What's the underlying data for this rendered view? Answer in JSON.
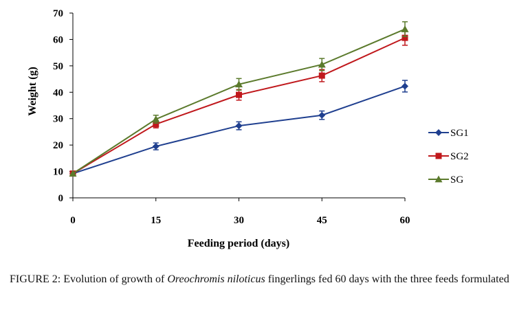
{
  "chart_data": {
    "type": "line",
    "xlabel": "Feeding period (days)",
    "ylabel": "Weight (g)",
    "x": [
      0,
      15,
      30,
      45,
      60
    ],
    "xlim": [
      0,
      60
    ],
    "ylim": [
      0,
      70
    ],
    "yticks": [
      0,
      10,
      20,
      30,
      40,
      50,
      60,
      70
    ],
    "grid": false,
    "legend": "right",
    "series": [
      {
        "name": "SG1",
        "values": [
          9.2,
          19.5,
          27.3,
          31.3,
          42.3
        ],
        "errors": [
          1.0,
          1.3,
          1.5,
          1.6,
          2.2
        ],
        "color": "#1f3f8f",
        "marker": "diamond"
      },
      {
        "name": "SG2",
        "values": [
          9.2,
          27.9,
          39.0,
          46.3,
          60.6
        ],
        "errors": [
          1.0,
          1.4,
          2.0,
          2.3,
          2.8
        ],
        "color": "#c0181c",
        "marker": "square"
      },
      {
        "name": "SG",
        "values": [
          9.2,
          29.8,
          43.0,
          50.5,
          63.9
        ],
        "errors": [
          1.0,
          1.5,
          2.2,
          2.3,
          2.8
        ],
        "color": "#5b7a2c",
        "marker": "triangle"
      }
    ]
  },
  "caption": {
    "prefix": "FIGURE 2: Evolution of growth of ",
    "species": "Oreochromis niloticus",
    "suffix": " fingerlings fed 60 days with the three feeds formulated"
  }
}
